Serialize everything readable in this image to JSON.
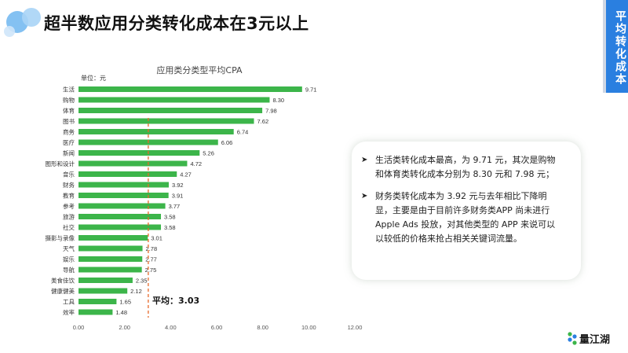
{
  "page": {
    "title": "超半数应用分类转化成本在3元以上",
    "side_tag": "平均转化成本",
    "brand": "量江湖"
  },
  "colors": {
    "bar": "#3cb54a",
    "average_line": "#e8692a",
    "side_tag": "#2a7fe0",
    "axis_text": "#555555"
  },
  "icons": [
    "bubble-decoration-icon",
    "brand-logo-icon",
    "bullet-arrow-icon"
  ],
  "chart_data": {
    "type": "bar",
    "orientation": "horizontal",
    "title": "应用类分类型平均CPA",
    "unit_label": "单位：元",
    "categories": [
      "生活",
      "购物",
      "体育",
      "图书",
      "商务",
      "医疗",
      "新闻",
      "图形和设计",
      "音乐",
      "财务",
      "教育",
      "参考",
      "旅游",
      "社交",
      "摄影与录像",
      "天气",
      "娱乐",
      "导航",
      "美食佳饮",
      "健康健美",
      "工具",
      "效率"
    ],
    "values": [
      9.71,
      8.3,
      7.98,
      7.62,
      6.74,
      6.06,
      5.26,
      4.72,
      4.27,
      3.92,
      3.91,
      3.77,
      3.58,
      3.58,
      3.01,
      2.78,
      2.77,
      2.75,
      2.35,
      2.12,
      1.65,
      1.48
    ],
    "value_labels": [
      "9.71",
      "8.30",
      "7.98",
      "7.62",
      "6.74",
      "6.06",
      "5.26",
      "4.72",
      "4.27",
      "3.92",
      "3.91",
      "3.77",
      "3.58",
      "3.58",
      "3.01",
      "2.78",
      "2.77",
      "2.75",
      "2.35",
      "2.12",
      "1.65",
      "1.48"
    ],
    "xlim": [
      0,
      12
    ],
    "xticks": [
      "0.00",
      "2.00",
      "4.00",
      "6.00",
      "8.00",
      "10.00",
      "12.00"
    ],
    "average": 3.03,
    "average_label": "平均：3.03",
    "grid": false
  },
  "insights": [
    "生活类转化成本最高，为 9.71 元，其次是购物和体育类转化成本分别为 8.30 元和 7.98 元；",
    "财务类转化成本为 3.92 元与去年相比下降明显，主要是由于目前许多财务类APP 尚未进行 Apple Ads 投放，对其他类型的 APP 来说可以以较低的价格来抢占相关关键词流量。"
  ]
}
